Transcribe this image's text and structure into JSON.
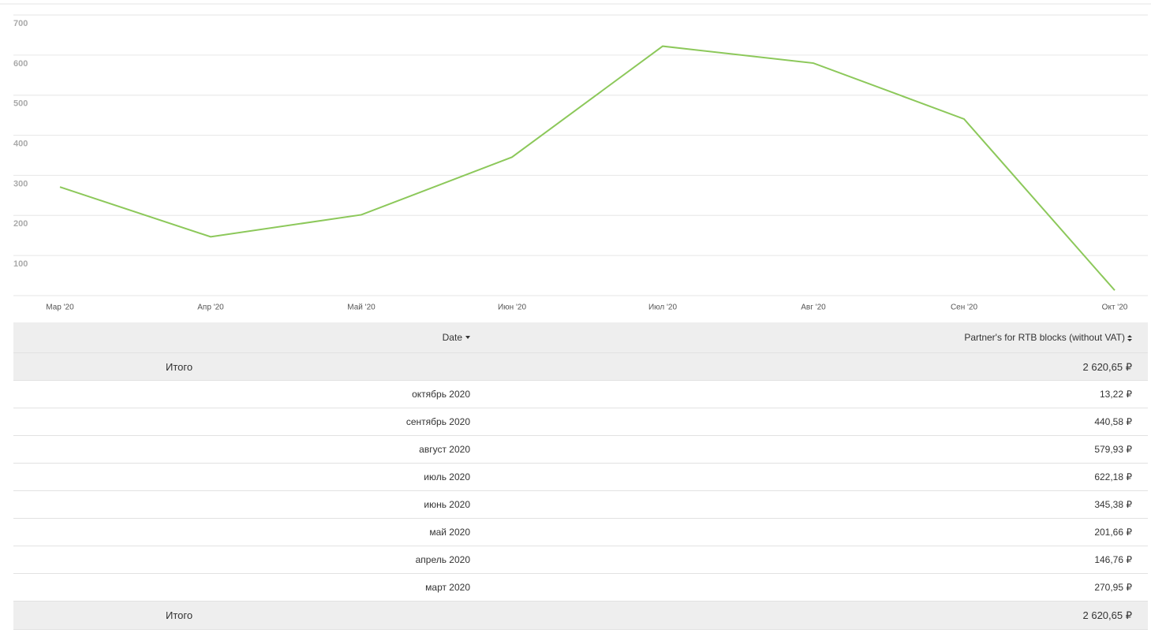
{
  "chart_data": {
    "type": "line",
    "categories": [
      "Мар '20",
      "Апр '20",
      "Май '20",
      "Июн '20",
      "Июл '20",
      "Авг '20",
      "Сен '20",
      "Окт '20"
    ],
    "values": [
      270.95,
      146.76,
      201.66,
      345.38,
      622.18,
      579.93,
      440.58,
      13.22
    ],
    "color": "#8cc85a",
    "ylim": [
      0,
      700
    ],
    "yticks": [
      100,
      200,
      300,
      400,
      500,
      600,
      700
    ],
    "grid": true
  },
  "table": {
    "columns": [
      "Date",
      "Partner's for RTB blocks (without VAT)"
    ],
    "summary": [
      "Итого",
      "2 620,65 ₽"
    ],
    "rows": [
      [
        "октябрь 2020",
        "13,22 ₽"
      ],
      [
        "сентябрь 2020",
        "440,58 ₽"
      ],
      [
        "август 2020",
        "579,93 ₽"
      ],
      [
        "июль 2020",
        "622,18 ₽"
      ],
      [
        "июнь 2020",
        "345,38 ₽"
      ],
      [
        "май 2020",
        "201,66 ₽"
      ],
      [
        "апрель 2020",
        "146,76 ₽"
      ],
      [
        "март 2020",
        "270,95 ₽"
      ]
    ],
    "footer": [
      "Итого",
      "2 620,65 ₽"
    ]
  }
}
